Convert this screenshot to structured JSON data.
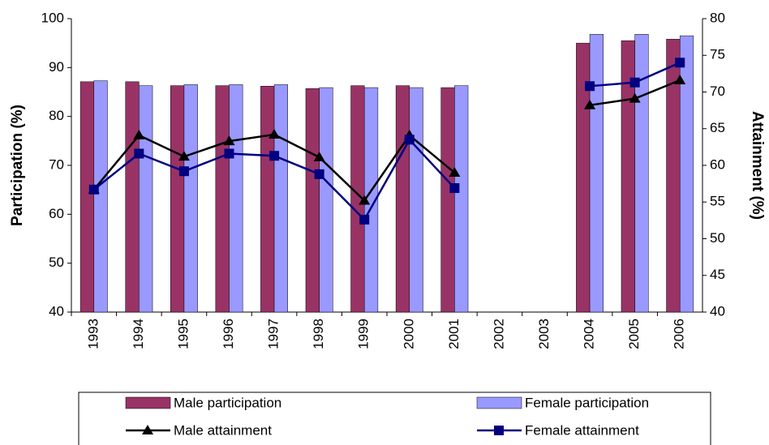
{
  "chart_data": {
    "type": "bar-line",
    "y_label": "Participation (%)",
    "y2_label": "Attainment (%)",
    "categories": [
      "1993",
      "1994",
      "1995",
      "1996",
      "1997",
      "1998",
      "1999",
      "2000",
      "2001",
      "2002",
      "2003",
      "2004",
      "2005",
      "2006"
    ],
    "ylim": [
      40,
      100
    ],
    "yticks": [
      40,
      50,
      60,
      70,
      80,
      90,
      100
    ],
    "y2lim": [
      40,
      80
    ],
    "y2ticks": [
      40,
      45,
      50,
      55,
      60,
      65,
      70,
      75,
      80
    ],
    "series": [
      {
        "name": "Male participation",
        "color": "#993366",
        "kind": "bar",
        "values": [
          87.1,
          87.1,
          86.3,
          86.3,
          86.2,
          85.7,
          86.3,
          86.3,
          85.9,
          null,
          null,
          95.0,
          95.5,
          95.8
        ]
      },
      {
        "name": "Female participation",
        "color": "#9999ff",
        "kind": "bar",
        "values": [
          87.3,
          86.3,
          86.5,
          86.5,
          86.5,
          85.9,
          85.9,
          85.9,
          86.3,
          null,
          null,
          96.8,
          96.8,
          96.5
        ]
      },
      {
        "name": "Male attainment",
        "color": "#000000",
        "kind": "line",
        "marker": "triangle",
        "axis": "y2",
        "values": [
          56.7,
          64.1,
          61.2,
          63.3,
          64.2,
          61.1,
          55.2,
          64.1,
          59.0,
          null,
          null,
          68.2,
          69.1,
          71.6
        ]
      },
      {
        "name": "Female attainment",
        "color": "#000080",
        "kind": "line",
        "marker": "square",
        "axis": "y2",
        "values": [
          56.7,
          61.6,
          59.2,
          61.6,
          61.3,
          58.8,
          52.6,
          63.5,
          56.9,
          null,
          null,
          70.8,
          71.3,
          74.0
        ]
      }
    ]
  }
}
